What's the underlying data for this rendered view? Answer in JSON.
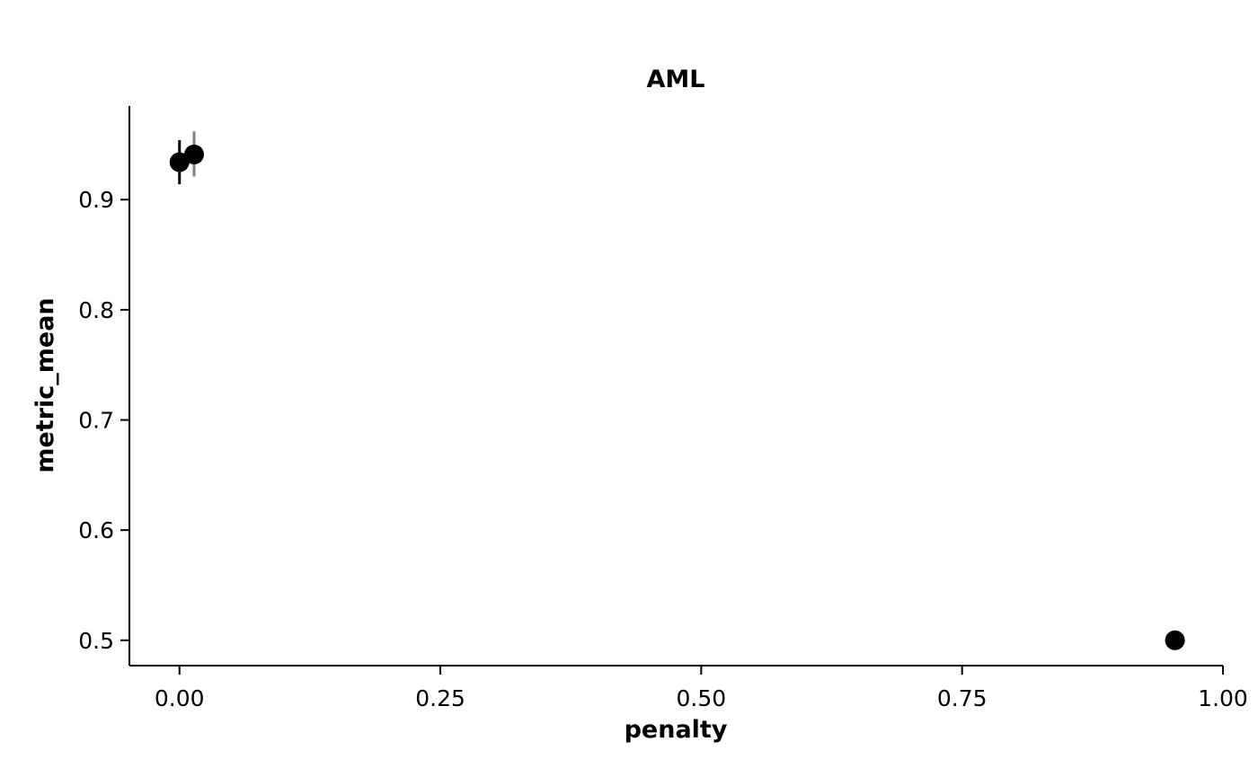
{
  "chart_data": {
    "type": "scatter",
    "title": "AML",
    "xlabel": "penalty",
    "ylabel": "metric_mean",
    "xlim": [
      -0.048,
      1.0
    ],
    "ylim": [
      0.477,
      0.985
    ],
    "xticks": [
      0.0,
      0.25,
      0.5,
      0.75,
      1.0
    ],
    "xtick_labels": [
      "0.00",
      "0.25",
      "0.50",
      "0.75",
      "1.00"
    ],
    "yticks": [
      0.5,
      0.6,
      0.7,
      0.8,
      0.9
    ],
    "ytick_labels": [
      "0.5",
      "0.6",
      "0.7",
      "0.8",
      "0.9"
    ],
    "grid": false,
    "points": [
      {
        "x": 0.0,
        "y": 0.934,
        "err_low": 0.914,
        "err_high": 0.954,
        "err_color": "#000000"
      },
      {
        "x": 0.014,
        "y": 0.941,
        "err_low": 0.921,
        "err_high": 0.962,
        "err_color": "#808080"
      },
      {
        "x": 0.954,
        "y": 0.5,
        "err_low": 0.5,
        "err_high": 0.5,
        "err_color": "#000000"
      }
    ],
    "point_color": "#000000"
  }
}
